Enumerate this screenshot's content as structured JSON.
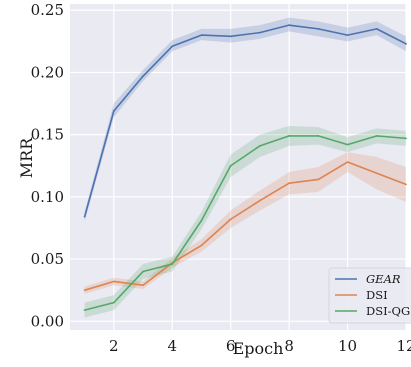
{
  "chart_data": {
    "type": "line",
    "title": "",
    "xlabel": "Epoch",
    "ylabel": "MRR",
    "x": [
      1,
      2,
      3,
      4,
      5,
      6,
      7,
      8,
      9,
      10,
      11,
      12
    ],
    "xlim": [
      0.5,
      12.0
    ],
    "ylim": [
      -0.007,
      0.255
    ],
    "xticks": [
      2,
      4,
      6,
      8,
      10,
      12
    ],
    "xtick_labels": [
      "2",
      "4",
      "6",
      "8",
      "10",
      "12"
    ],
    "yticks": [
      0.0,
      0.05,
      0.1,
      0.15,
      0.2,
      0.25
    ],
    "ytick_labels": [
      "0.00",
      "0.05",
      "0.10",
      "0.15",
      "0.20",
      "0.25"
    ],
    "grid": true,
    "legend_position": "bottom-right",
    "colors": {
      "background": "#eaeaf2",
      "grid": "#ffffff"
    },
    "series": [
      {
        "name": "GEAR",
        "italic": true,
        "color": "#4c72b0",
        "values": [
          0.084,
          0.169,
          0.197,
          0.221,
          0.23,
          0.229,
          0.232,
          0.238,
          0.235,
          0.23,
          0.235,
          0.223
        ],
        "lower": [
          0.08,
          0.164,
          0.193,
          0.217,
          0.226,
          0.224,
          0.227,
          0.233,
          0.229,
          0.225,
          0.23,
          0.217
        ],
        "upper": [
          0.088,
          0.175,
          0.202,
          0.226,
          0.235,
          0.235,
          0.238,
          0.244,
          0.241,
          0.236,
          0.241,
          0.229
        ]
      },
      {
        "name": "DSI",
        "italic": false,
        "color": "#dd8452",
        "values": [
          0.025,
          0.032,
          0.029,
          0.047,
          0.061,
          0.082,
          0.097,
          0.111,
          0.114,
          0.128,
          0.119,
          0.11
        ],
        "lower": [
          0.022,
          0.029,
          0.026,
          0.043,
          0.056,
          0.075,
          0.089,
          0.102,
          0.104,
          0.12,
          0.106,
          0.096
        ],
        "upper": [
          0.028,
          0.035,
          0.032,
          0.051,
          0.066,
          0.089,
          0.105,
          0.12,
          0.124,
          0.136,
          0.132,
          0.124
        ]
      },
      {
        "name": "DSI-QG",
        "italic": false,
        "color": "#55a868",
        "values": [
          0.009,
          0.015,
          0.04,
          0.046,
          0.081,
          0.125,
          0.141,
          0.149,
          0.149,
          0.142,
          0.149,
          0.147
        ],
        "lower": [
          0.003,
          0.009,
          0.034,
          0.04,
          0.074,
          0.116,
          0.132,
          0.141,
          0.142,
          0.136,
          0.143,
          0.141
        ],
        "upper": [
          0.015,
          0.021,
          0.046,
          0.052,
          0.088,
          0.134,
          0.15,
          0.157,
          0.156,
          0.148,
          0.155,
          0.153
        ]
      }
    ]
  }
}
